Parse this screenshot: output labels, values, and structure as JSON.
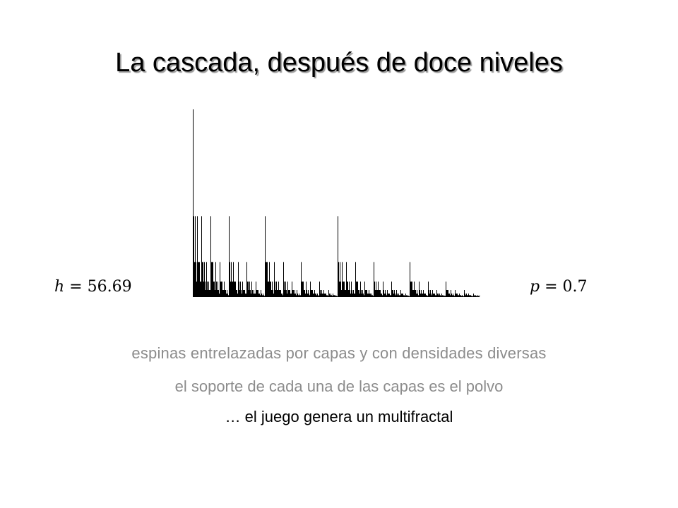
{
  "slide": {
    "title": "La cascada, después de doce niveles",
    "params": {
      "h": {
        "symbol": "h",
        "equals": "=",
        "value": "56.69"
      },
      "p": {
        "symbol": "p",
        "equals": "=",
        "value": "0.7"
      }
    },
    "captions": [
      "espinas entrelazadas por capas y con densidades diversas",
      "el soporte de cada una de las capas es el polvo",
      "… el juego genera un multifractal"
    ],
    "cascade": {
      "levels": 12,
      "p": 0.7,
      "bar_color": "#000000"
    }
  }
}
